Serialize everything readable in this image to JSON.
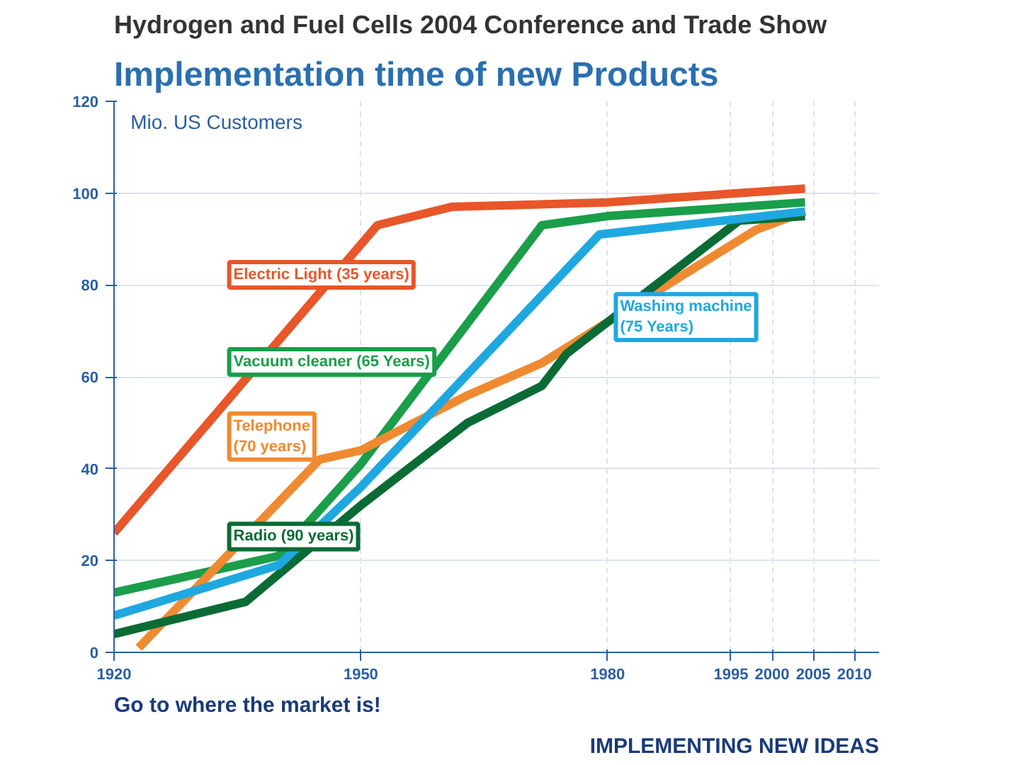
{
  "chart_data": {
    "type": "line",
    "title": "Implementation time of new Products",
    "subtitle": "Hydrogen and Fuel Cells 2004 Conference and Trade Show",
    "ylabel": "Mio. US Customers",
    "annotations": [
      "Go to where the market is!",
      "IMPLEMENTING NEW IDEAS"
    ],
    "xlim": [
      1920,
      2013
    ],
    "xticks": [
      1920,
      1950,
      1980,
      1995,
      2000,
      2005,
      2010
    ],
    "ylim": [
      0,
      120
    ],
    "yticks": [
      0,
      20,
      40,
      60,
      80,
      100,
      120
    ],
    "grid": true,
    "line_style": "solid",
    "series": [
      {
        "name": "Electric Light (35 years)",
        "color": "#e8562a",
        "x": [
          1920,
          1952,
          1961,
          1980,
          2004
        ],
        "values": [
          26,
          93,
          97,
          98,
          101
        ]
      },
      {
        "name": "Vacuum cleaner (65 Years)",
        "color": "#1a9e4a",
        "x": [
          1920,
          1940,
          1950,
          1972,
          1980,
          2004
        ],
        "values": [
          13,
          21,
          41,
          93,
          95,
          98
        ]
      },
      {
        "name": "Telephone\n(70 years)",
        "color": "#f08a30",
        "x": [
          1923,
          1945,
          1950,
          1963,
          1972,
          1998,
          2004
        ],
        "values": [
          1,
          42,
          44,
          56,
          63,
          92,
          96
        ]
      },
      {
        "name": "Radio (90 years)",
        "color": "#0b6b35",
        "x": [
          1920,
          1936,
          1950,
          1963,
          1972,
          1975,
          1996,
          2004
        ],
        "values": [
          4,
          11,
          32,
          50,
          58,
          65,
          94,
          95
        ]
      },
      {
        "name": "Washing machine\n(75 Years)",
        "color": "#1fa8e0",
        "x": [
          1920,
          1940,
          1950,
          1979,
          1989,
          2004
        ],
        "values": [
          8,
          19,
          36,
          91,
          93,
          96
        ]
      }
    ]
  }
}
